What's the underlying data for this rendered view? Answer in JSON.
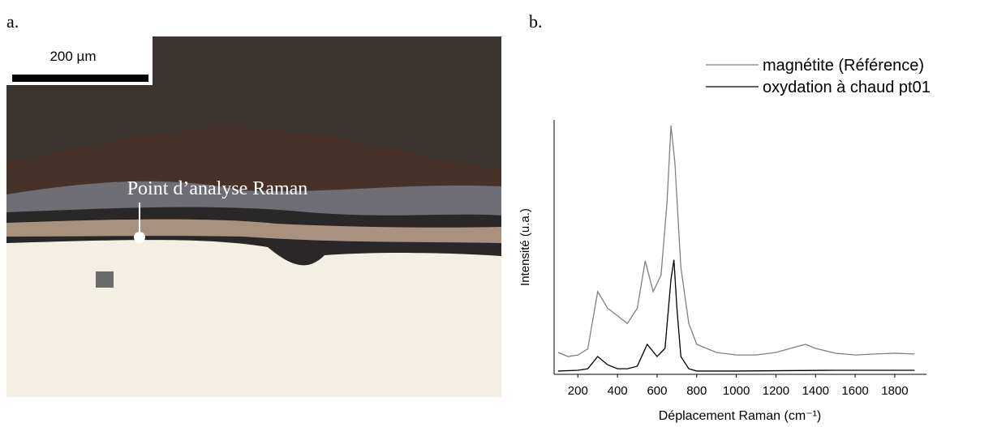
{
  "panel_a": {
    "label": "a.",
    "scale_bar": "200 µm",
    "annotation": "Point d’analyse Raman"
  },
  "chart_data": {
    "type": "line",
    "panel_label": "b.",
    "x_label": "Déplacement Raman (cm⁻¹)",
    "y_label": "Intensité (u.a.)",
    "xlim": [
      80,
      1960
    ],
    "ylim": [
      0,
      100
    ],
    "xticks": [
      200,
      400,
      600,
      800,
      1000,
      1200,
      1400,
      1600,
      1800
    ],
    "legend": "top-right",
    "series": [
      {
        "name": "magnétite (Référence)",
        "color": "#808080",
        "x": [
          100,
          150,
          200,
          250,
          300,
          350,
          400,
          450,
          500,
          540,
          580,
          620,
          650,
          670,
          690,
          720,
          760,
          800,
          900,
          1000,
          1100,
          1200,
          1300,
          1350,
          1400,
          1500,
          1600,
          1700,
          1800,
          1900
        ],
        "values": [
          8.6,
          7,
          7.6,
          10,
          32.5,
          26,
          23,
          20,
          26,
          44.6,
          32.5,
          39,
          67.5,
          97.8,
          83,
          42,
          20,
          11.8,
          8.6,
          7.6,
          7.6,
          8.6,
          10.8,
          11.8,
          10.2,
          8.3,
          7.6,
          8,
          8.3,
          8
        ]
      },
      {
        "name": "oxydation à chaud pt01",
        "color": "#000000",
        "x": [
          100,
          200,
          250,
          300,
          350,
          400,
          450,
          500,
          550,
          600,
          640,
          670,
          685,
          700,
          720,
          760,
          800,
          1000,
          1500,
          1900
        ],
        "values": [
          1.3,
          1.6,
          2.2,
          7,
          3.8,
          2.2,
          2.2,
          3.2,
          11.8,
          7,
          10.2,
          37.3,
          45,
          26,
          7,
          2.2,
          1.3,
          1.3,
          1.6,
          1.6
        ]
      }
    ]
  }
}
